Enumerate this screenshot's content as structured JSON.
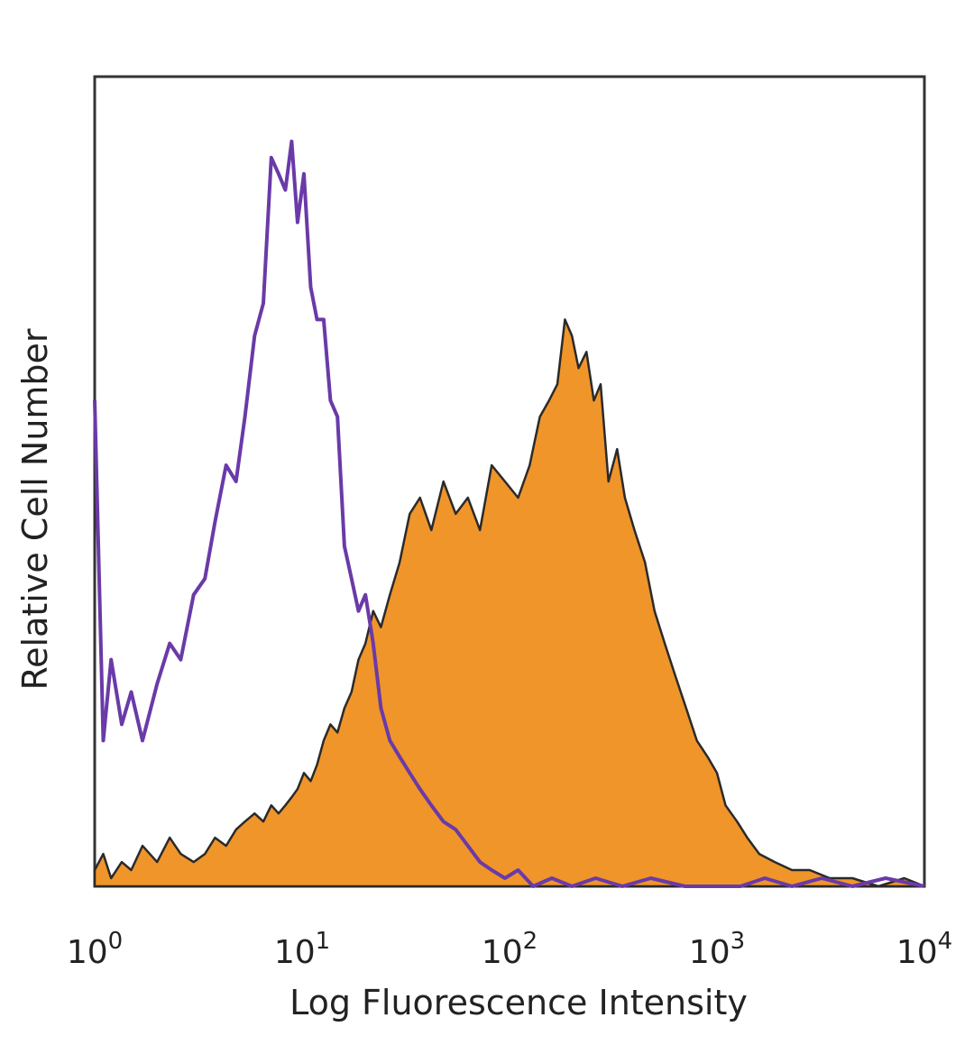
{
  "chart_data": {
    "type": "area",
    "title": "",
    "xlabel": "Log Fluorescence Intensity",
    "ylabel": "Relative Cell Number",
    "x_scale": "log",
    "xlim": [
      1,
      10000
    ],
    "ylim": [
      0,
      100
    ],
    "x_ticks": [
      {
        "base": "10",
        "exp": "0"
      },
      {
        "base": "10",
        "exp": "1"
      },
      {
        "base": "10",
        "exp": "2"
      },
      {
        "base": "10",
        "exp": "3"
      },
      {
        "base": "10",
        "exp": "4"
      }
    ],
    "grid": false,
    "legend": "none",
    "series": [
      {
        "style": "line",
        "color": "#6a3aa8",
        "x": [
          1.0,
          1.1,
          1.2,
          1.35,
          1.5,
          1.7,
          2.0,
          2.3,
          2.6,
          3.0,
          3.4,
          3.8,
          4.3,
          4.8,
          5.3,
          5.9,
          6.5,
          7.1,
          7.7,
          8.3,
          8.9,
          9.5,
          10.2,
          11.0,
          11.8,
          12.7,
          13.7,
          14.8,
          16.0,
          17.3,
          18.7,
          20.2,
          22.0,
          24.0,
          26.5,
          29.5,
          33.0,
          37.0,
          42.0,
          48.0,
          55.0,
          63.0,
          72.0,
          82.0,
          95.0,
          110.0,
          130.0,
          160.0,
          200.0,
          260.0,
          350.0,
          480.0,
          700.0,
          1000.0,
          1300.0,
          1700.0,
          2300.0,
          3200.0,
          4500.0,
          6500.0,
          10000.0
        ],
        "y": [
          60,
          18,
          28,
          20,
          24,
          18,
          25,
          30,
          28,
          36,
          38,
          45,
          52,
          50,
          58,
          68,
          72,
          90,
          88,
          86,
          92,
          82,
          88,
          74,
          70,
          70,
          60,
          58,
          42,
          38,
          34,
          36,
          30,
          22,
          18,
          16,
          14,
          12,
          10,
          8,
          7,
          5,
          3,
          2,
          1,
          2,
          0,
          1,
          0,
          1,
          0,
          1,
          0,
          0,
          0,
          1,
          0,
          1,
          0,
          1,
          0
        ]
      },
      {
        "style": "filled",
        "color": "#f0952a",
        "x": [
          1.0,
          1.1,
          1.2,
          1.35,
          1.5,
          1.7,
          2.0,
          2.3,
          2.6,
          3.0,
          3.4,
          3.8,
          4.3,
          4.8,
          5.3,
          5.9,
          6.5,
          7.1,
          7.7,
          8.3,
          8.9,
          9.5,
          10.2,
          11.0,
          11.8,
          12.7,
          13.7,
          14.8,
          16.0,
          17.3,
          18.7,
          20.2,
          22.0,
          24.0,
          26.5,
          29.5,
          33.0,
          37.0,
          42.0,
          48.0,
          55.0,
          63.0,
          72.0,
          82.0,
          95.0,
          110.0,
          125.0,
          140.0,
          155.0,
          170.0,
          185.0,
          200.0,
          215.0,
          235.0,
          255.0,
          275.0,
          300.0,
          330.0,
          360.0,
          400.0,
          450.0,
          500.0,
          560.0,
          630.0,
          710.0,
          800.0,
          900.0,
          1000.0,
          1100.0,
          1250.0,
          1400.0,
          1600.0,
          1900.0,
          2300.0,
          2800.0,
          3500.0,
          4500.0,
          6000.0,
          8000.0,
          10000.0
        ],
        "y": [
          2,
          4,
          1,
          3,
          2,
          5,
          3,
          6,
          4,
          3,
          4,
          6,
          5,
          7,
          8,
          9,
          8,
          10,
          9,
          10,
          11,
          12,
          14,
          13,
          15,
          18,
          20,
          19,
          22,
          24,
          28,
          30,
          34,
          32,
          36,
          40,
          46,
          48,
          44,
          50,
          46,
          48,
          44,
          52,
          50,
          48,
          52,
          58,
          60,
          62,
          70,
          68,
          64,
          66,
          60,
          62,
          50,
          54,
          48,
          44,
          40,
          34,
          30,
          26,
          22,
          18,
          16,
          14,
          10,
          8,
          6,
          4,
          3,
          2,
          2,
          1,
          1,
          0,
          1,
          0
        ]
      }
    ]
  }
}
